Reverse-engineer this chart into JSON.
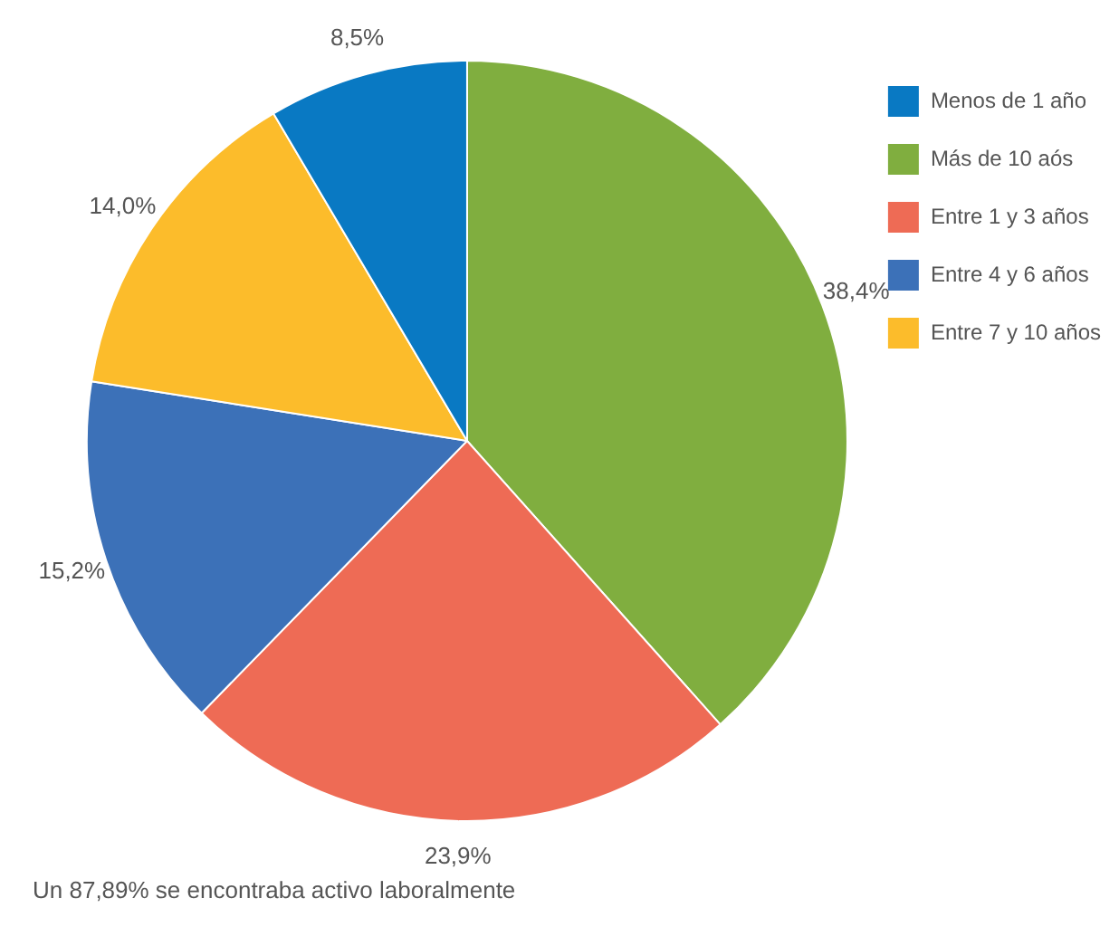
{
  "chart_data": {
    "type": "pie",
    "categories": [
      "Más de 10 aós",
      "Entre 1 y 3 años",
      "Entre 4 y 6 años",
      "Entre 7 y 10 años",
      "Menos de 1 año"
    ],
    "values": [
      38.4,
      23.9,
      15.2,
      14.0,
      8.5
    ],
    "value_labels": [
      "38,4%",
      "23,9%",
      "15,2%",
      "14,0%",
      "8,5%"
    ],
    "colors": [
      "#80ae3f",
      "#ee6b55",
      "#3c71b8",
      "#fcbc2b",
      "#0979c3"
    ],
    "legend": "top right",
    "annotations": [
      "Un 87,89% se encontraba activo laboralmente"
    ]
  }
}
